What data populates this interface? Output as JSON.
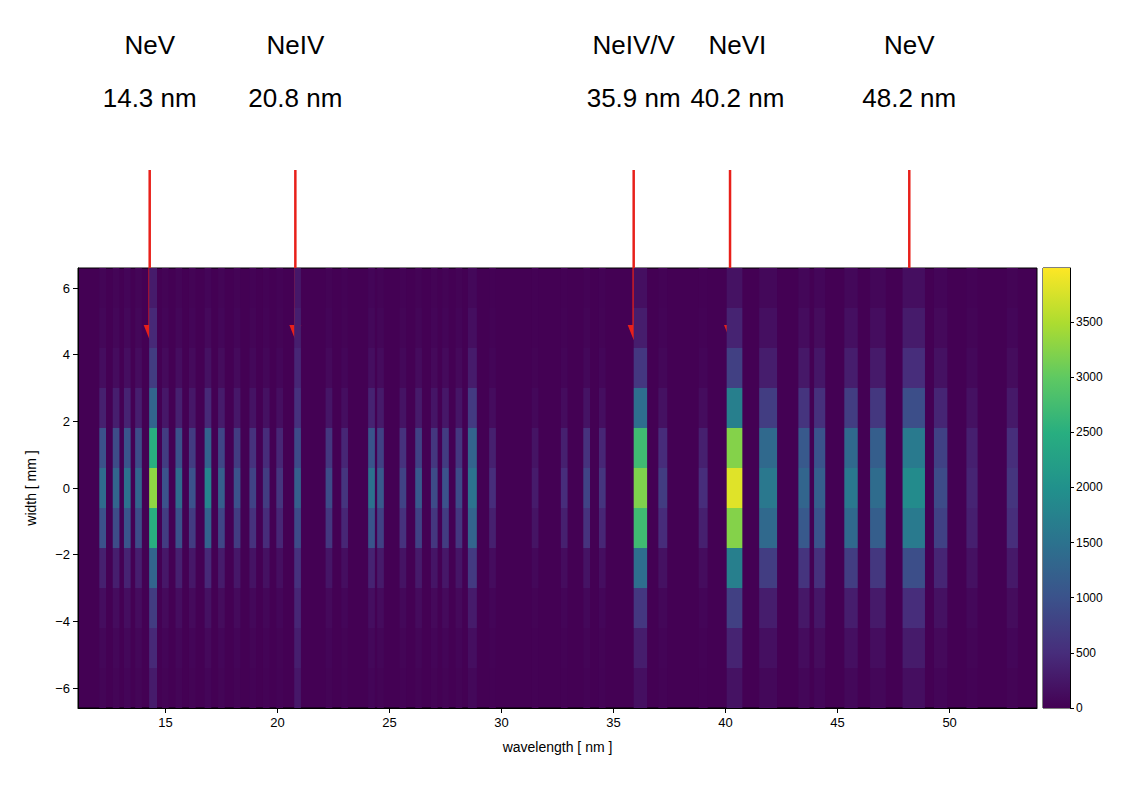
{
  "chart_data": {
    "type": "heatmap",
    "xlabel": "wavelength [ nm ]",
    "ylabel": "width [ mm ]",
    "xlim": [
      11.1,
      53.9
    ],
    "xticks": [
      15,
      20,
      25,
      30,
      35,
      40,
      45,
      50
    ],
    "ylim": [
      -6.6,
      6.6
    ],
    "yticks": [
      {
        "value": -6,
        "label": "−6"
      },
      {
        "value": -4,
        "label": "−4"
      },
      {
        "value": -2,
        "label": "−2"
      },
      0,
      2,
      4,
      6
    ],
    "grid": false,
    "color": "viridis",
    "rows": [
      -6,
      -4.8,
      -3.6,
      -2.4,
      -1.2,
      0,
      1.2,
      2.4,
      3.6,
      4.8,
      6
    ],
    "lines": [
      {
        "wavelength": 12.2,
        "fwhm": 0.3,
        "values": [
          40,
          70,
          140,
          350,
          980,
          1400,
          980,
          350,
          140,
          70,
          40
        ]
      },
      {
        "wavelength": 12.8,
        "fwhm": 0.3,
        "values": [
          40,
          70,
          130,
          330,
          910,
          1300,
          910,
          330,
          130,
          70,
          40
        ]
      },
      {
        "wavelength": 13.3,
        "fwhm": 0.3,
        "values": [
          50,
          80,
          150,
          380,
          1050,
          1500,
          1050,
          380,
          150,
          80,
          50
        ]
      },
      {
        "wavelength": 13.8,
        "fwhm": 0.3,
        "values": [
          40,
          70,
          130,
          330,
          910,
          1300,
          910,
          330,
          130,
          70,
          40
        ]
      },
      {
        "wavelength": 14.45,
        "fwhm": 0.35,
        "values": [
          300,
          450,
          700,
          1300,
          2500,
          3300,
          2500,
          1300,
          700,
          450,
          300
        ]
      },
      {
        "wavelength": 15.0,
        "fwhm": 0.3,
        "values": [
          30,
          50,
          100,
          250,
          700,
          1000,
          700,
          250,
          100,
          50,
          30
        ]
      },
      {
        "wavelength": 15.6,
        "fwhm": 0.3,
        "values": [
          40,
          70,
          140,
          350,
          980,
          1400,
          980,
          350,
          140,
          70,
          40
        ]
      },
      {
        "wavelength": 16.2,
        "fwhm": 0.3,
        "values": [
          30,
          50,
          100,
          250,
          700,
          1000,
          700,
          250,
          100,
          50,
          30
        ]
      },
      {
        "wavelength": 16.9,
        "fwhm": 0.3,
        "values": [
          50,
          90,
          180,
          450,
          1260,
          1800,
          1260,
          450,
          180,
          90,
          50
        ]
      },
      {
        "wavelength": 17.5,
        "fwhm": 0.3,
        "values": [
          40,
          60,
          120,
          300,
          840,
          1200,
          840,
          300,
          120,
          60,
          40
        ]
      },
      {
        "wavelength": 18.2,
        "fwhm": 0.3,
        "values": [
          30,
          50,
          100,
          250,
          700,
          1000,
          700,
          250,
          100,
          50,
          30
        ]
      },
      {
        "wavelength": 18.9,
        "fwhm": 0.3,
        "values": [
          20,
          40,
          80,
          200,
          560,
          800,
          560,
          200,
          80,
          40,
          20
        ]
      },
      {
        "wavelength": 19.5,
        "fwhm": 0.3,
        "values": [
          20,
          35,
          70,
          180,
          490,
          700,
          490,
          180,
          70,
          35,
          20
        ]
      },
      {
        "wavelength": 20.1,
        "fwhm": 0.3,
        "values": [
          20,
          30,
          60,
          150,
          420,
          600,
          420,
          150,
          60,
          30,
          20
        ]
      },
      {
        "wavelength": 20.9,
        "fwhm": 0.3,
        "values": [
          250,
          330,
          420,
          550,
          900,
          1200,
          900,
          550,
          420,
          330,
          250
        ]
      },
      {
        "wavelength": 22.3,
        "fwhm": 0.3,
        "values": [
          30,
          45,
          90,
          230,
          630,
          900,
          630,
          230,
          90,
          45,
          30
        ]
      },
      {
        "wavelength": 23.0,
        "fwhm": 0.3,
        "values": [
          20,
          30,
          60,
          150,
          420,
          600,
          420,
          150,
          60,
          30,
          20
        ]
      },
      {
        "wavelength": 24.2,
        "fwhm": 0.3,
        "values": [
          50,
          80,
          150,
          380,
          1050,
          1500,
          1050,
          380,
          150,
          80,
          50
        ]
      },
      {
        "wavelength": 24.6,
        "fwhm": 0.3,
        "values": [
          30,
          55,
          110,
          280,
          770,
          1100,
          770,
          280,
          110,
          55,
          30
        ]
      },
      {
        "wavelength": 25.6,
        "fwhm": 0.3,
        "values": [
          20,
          40,
          80,
          200,
          560,
          800,
          560,
          200,
          80,
          40,
          20
        ]
      },
      {
        "wavelength": 26.3,
        "fwhm": 0.3,
        "values": [
          30,
          55,
          110,
          280,
          770,
          1100,
          770,
          280,
          110,
          55,
          30
        ]
      },
      {
        "wavelength": 27.0,
        "fwhm": 0.3,
        "values": [
          30,
          45,
          90,
          230,
          630,
          900,
          630,
          230,
          90,
          45,
          30
        ]
      },
      {
        "wavelength": 27.5,
        "fwhm": 0.3,
        "values": [
          30,
          50,
          100,
          250,
          700,
          1000,
          700,
          250,
          100,
          50,
          30
        ]
      },
      {
        "wavelength": 28.1,
        "fwhm": 0.3,
        "values": [
          30,
          45,
          90,
          230,
          630,
          900,
          630,
          230,
          90,
          45,
          30
        ]
      },
      {
        "wavelength": 28.7,
        "fwhm": 0.4,
        "values": [
          80,
          150,
          300,
          680,
          1280,
          1500,
          1280,
          680,
          300,
          150,
          80
        ]
      },
      {
        "wavelength": 29.6,
        "fwhm": 0.3,
        "values": [
          15,
          25,
          50,
          130,
          350,
          500,
          350,
          130,
          50,
          25,
          15
        ]
      },
      {
        "wavelength": 31.5,
        "fwhm": 0.3,
        "values": [
          10,
          15,
          30,
          80,
          210,
          300,
          210,
          80,
          30,
          15,
          10
        ]
      },
      {
        "wavelength": 32.8,
        "fwhm": 0.3,
        "values": [
          15,
          25,
          50,
          130,
          350,
          500,
          350,
          130,
          50,
          25,
          15
        ]
      },
      {
        "wavelength": 33.8,
        "fwhm": 0.3,
        "values": [
          20,
          40,
          80,
          200,
          560,
          800,
          560,
          200,
          80,
          40,
          20
        ]
      },
      {
        "wavelength": 34.5,
        "fwhm": 0.3,
        "values": [
          20,
          30,
          60,
          150,
          420,
          600,
          420,
          150,
          60,
          30,
          20
        ]
      },
      {
        "wavelength": 36.2,
        "fwhm": 0.6,
        "values": [
          160,
          320,
          640,
          1440,
          2720,
          3200,
          2720,
          1440,
          640,
          320,
          160
        ]
      },
      {
        "wavelength": 37.2,
        "fwhm": 0.4,
        "values": [
          20,
          35,
          70,
          180,
          490,
          700,
          490,
          180,
          70,
          35,
          20
        ]
      },
      {
        "wavelength": 39.0,
        "fwhm": 0.4,
        "values": [
          15,
          25,
          50,
          130,
          350,
          500,
          350,
          130,
          50,
          25,
          15
        ]
      },
      {
        "wavelength": 40.4,
        "fwhm": 0.7,
        "values": [
          190,
          380,
          760,
          1710,
          3230,
          3800,
          3230,
          1710,
          760,
          380,
          190
        ]
      },
      {
        "wavelength": 41.9,
        "fwhm": 0.8,
        "values": [
          80,
          160,
          320,
          720,
          1360,
          1600,
          1360,
          720,
          320,
          160,
          80
        ]
      },
      {
        "wavelength": 43.5,
        "fwhm": 0.5,
        "values": [
          70,
          130,
          260,
          590,
          1110,
          1300,
          1110,
          590,
          260,
          130,
          70
        ]
      },
      {
        "wavelength": 44.2,
        "fwhm": 0.5,
        "values": [
          60,
          120,
          240,
          540,
          1020,
          1200,
          1020,
          540,
          240,
          120,
          60
        ]
      },
      {
        "wavelength": 45.6,
        "fwhm": 0.6,
        "values": [
          80,
          160,
          320,
          720,
          1360,
          1600,
          1360,
          720,
          320,
          160,
          80
        ]
      },
      {
        "wavelength": 46.8,
        "fwhm": 0.7,
        "values": [
          70,
          140,
          280,
          630,
          1190,
          1400,
          1190,
          630,
          280,
          140,
          70
        ]
      },
      {
        "wavelength": 48.4,
        "fwhm": 1.0,
        "values": [
          150,
          300,
          500,
          950,
          1620,
          1900,
          1620,
          950,
          500,
          300,
          150
        ]
      },
      {
        "wavelength": 49.6,
        "fwhm": 0.6,
        "values": [
          50,
          90,
          180,
          410,
          770,
          900,
          770,
          410,
          180,
          90,
          50
        ]
      },
      {
        "wavelength": 51.0,
        "fwhm": 0.5,
        "values": [
          20,
          40,
          80,
          180,
          340,
          400,
          340,
          180,
          80,
          40,
          20
        ]
      },
      {
        "wavelength": 52.8,
        "fwhm": 0.5,
        "values": [
          30,
          60,
          120,
          270,
          510,
          600,
          510,
          270,
          120,
          60,
          30
        ]
      }
    ],
    "colorbar": {
      "range": [
        0,
        3990
      ],
      "ticks": [
        0,
        500,
        1000,
        1500,
        2000,
        2500,
        3000,
        3500
      ]
    },
    "annotations": [
      {
        "text": "NeV",
        "label": "14.3 nm",
        "x": 14.3
      },
      {
        "text": "NeIV",
        "label": "20.8 nm",
        "x": 20.8
      },
      {
        "text": "NeIV/V",
        "label": "35.9 nm",
        "x": 35.9
      },
      {
        "text": "NeVI",
        "label": "40.2 nm",
        "x": 40.2
      },
      {
        "text": "NeV",
        "label": "48.2 nm",
        "x": 48.2
      }
    ]
  }
}
